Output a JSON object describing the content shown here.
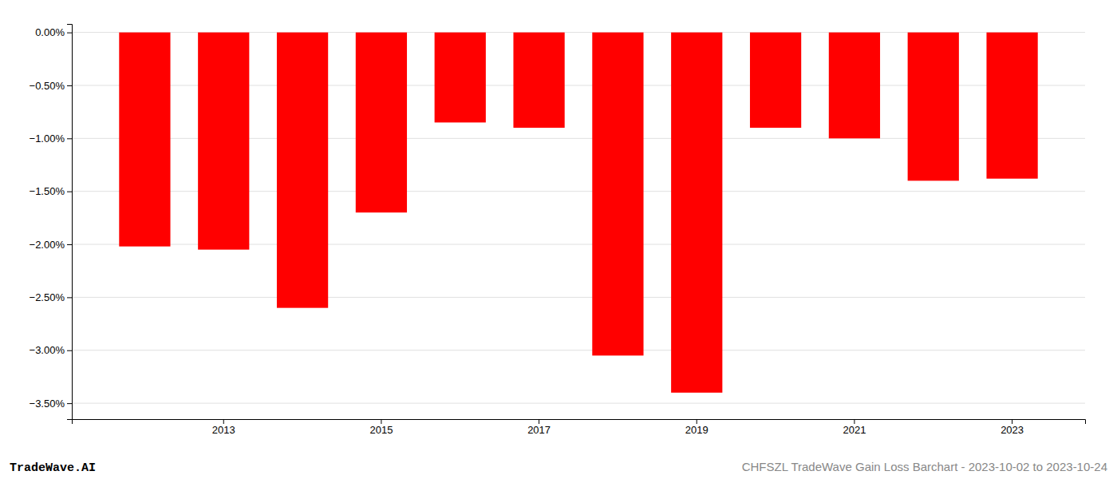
{
  "chart_data": {
    "type": "bar",
    "categories": [
      null,
      "2013",
      null,
      "2015",
      null,
      "2017",
      null,
      "2019",
      null,
      "2021",
      null,
      "2023"
    ],
    "values": [
      -2.02,
      -2.05,
      -2.6,
      -1.7,
      -0.85,
      -0.9,
      -3.05,
      -3.4,
      -0.9,
      -1.0,
      -1.4,
      -1.38
    ],
    "color": "#ff0000",
    "ylim": [
      -3.65,
      0.08
    ],
    "yticks": [
      {
        "value": 0.0,
        "label": "0.00%"
      },
      {
        "value": -0.5,
        "label": "−0.50%"
      },
      {
        "value": -1.0,
        "label": "−1.00%"
      },
      {
        "value": -1.5,
        "label": "−1.50%"
      },
      {
        "value": -2.0,
        "label": "−2.00%"
      },
      {
        "value": -2.5,
        "label": "−2.50%"
      },
      {
        "value": -3.0,
        "label": "−3.00%"
      },
      {
        "value": -3.5,
        "label": "−3.50%"
      }
    ],
    "grid": true,
    "annotations": [
      "TradeWave.AI",
      "CHFSZL TradeWave Gain Loss Barchart - 2023-10-02 to 2023-10-24"
    ]
  }
}
